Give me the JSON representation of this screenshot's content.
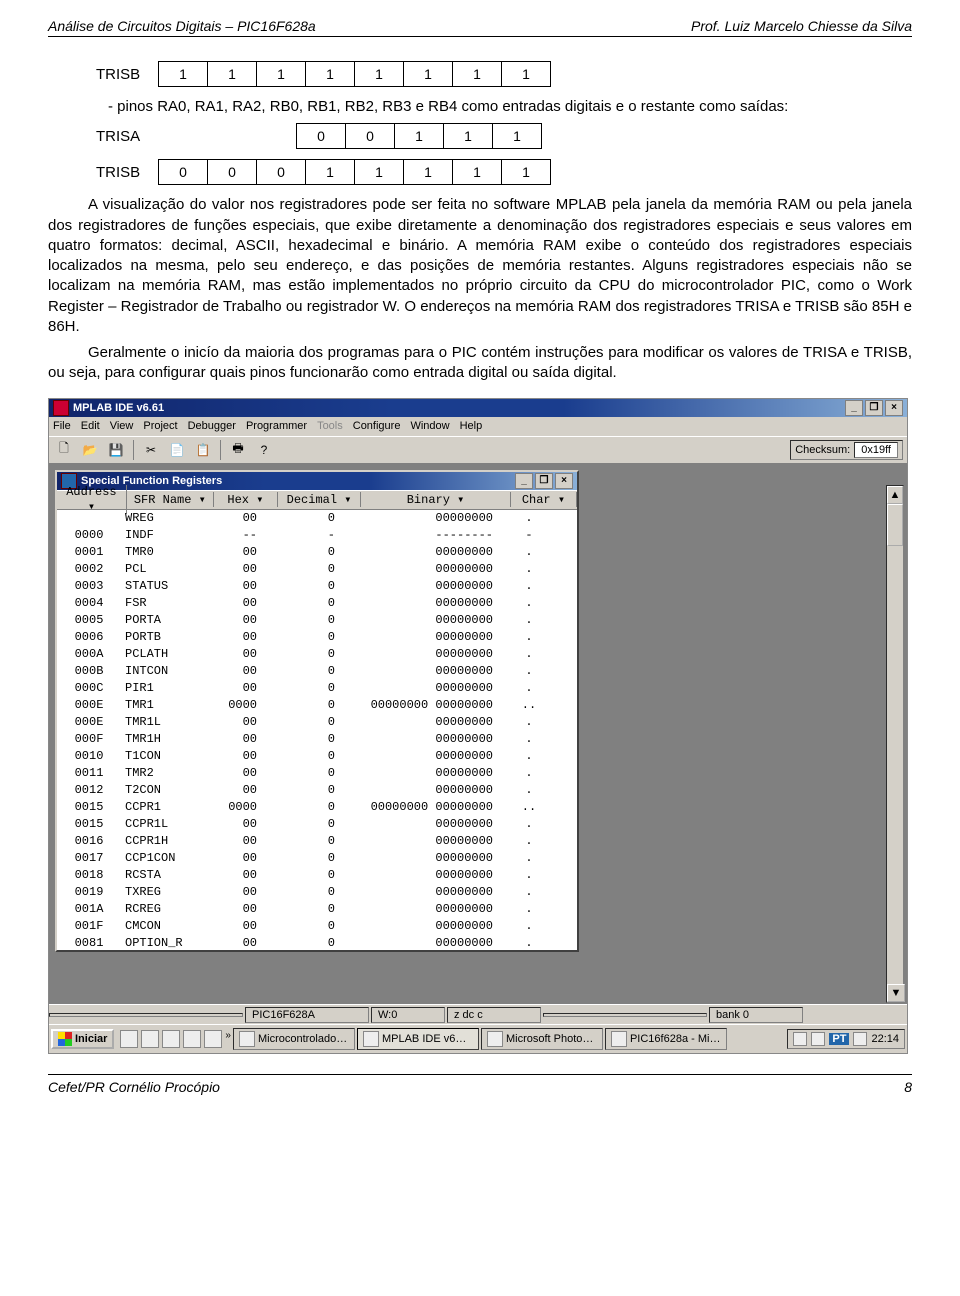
{
  "header": {
    "left": "Análise de Circuitos Digitais – PIC16F628a",
    "right": "Prof. Luiz Marcelo Chiesse da Silva"
  },
  "regs": {
    "trisb_top": {
      "label": "TRISB",
      "cells": [
        "1",
        "1",
        "1",
        "1",
        "1",
        "1",
        "1",
        "1"
      ]
    },
    "desc_pins": "- pinos RA0, RA1, RA2, RB0, RB1, RB2, RB3 e RB4 como entradas digitais e o restante como saídas:",
    "trisa": {
      "label": "TRISA",
      "cells": [
        "",
        "",
        "",
        "0",
        "0",
        "1",
        "1",
        "1"
      ]
    },
    "trisb_bot": {
      "label": "TRISB",
      "cells": [
        "0",
        "0",
        "0",
        "1",
        "1",
        "1",
        "1",
        "1"
      ]
    }
  },
  "para1": "A visualização do valor nos registradores pode ser feita no software MPLAB pela janela da memória RAM ou pela janela dos registradores de funções especiais, que exibe diretamente a denominação dos registradores especiais e seus valores em quatro formatos: decimal, ASCII, hexadecimal e binário. A memória RAM exibe o conteúdo dos registradores especiais localizados na mesma, pelo seu endereço, e das posições de memória restantes. Alguns registradores especiais não se localizam na memória RAM, mas estão implementados no próprio circuito da CPU do microcontrolador PIC, como o Work Register – Registrador de Trabalho ou registrador W. O endereços na memória RAM dos registradores TRISA e TRISB são 85H e 86H.",
  "para2": "Geralmente o inicío da maioria dos programas para o PIC contém instruções para modificar os valores de TRISA e TRISB, ou seja, para configurar quais pinos funcionarão como entrada digital ou saída digital.",
  "app": {
    "title": "MPLAB IDE v6.61",
    "menu": [
      "File",
      "Edit",
      "View",
      "Project",
      "Debugger",
      "Programmer",
      "Tools",
      "Configure",
      "Window",
      "Help"
    ],
    "menu_disabled_index": 6,
    "checksum_label": "Checksum:",
    "checksum_value": "0x19ff",
    "subwin_title": "Special Function Registers",
    "columns": [
      "Address",
      "SFR Name",
      "Hex",
      "Decimal",
      "Binary",
      "Char"
    ],
    "rows": [
      [
        "",
        "WREG",
        "00",
        "0",
        "00000000",
        "."
      ],
      [
        "0000",
        "INDF",
        "--",
        "-",
        "--------",
        "-"
      ],
      [
        "0001",
        "TMR0",
        "00",
        "0",
        "00000000",
        "."
      ],
      [
        "0002",
        "PCL",
        "00",
        "0",
        "00000000",
        "."
      ],
      [
        "0003",
        "STATUS",
        "00",
        "0",
        "00000000",
        "."
      ],
      [
        "0004",
        "FSR",
        "00",
        "0",
        "00000000",
        "."
      ],
      [
        "0005",
        "PORTA",
        "00",
        "0",
        "00000000",
        "."
      ],
      [
        "0006",
        "PORTB",
        "00",
        "0",
        "00000000",
        "."
      ],
      [
        "000A",
        "PCLATH",
        "00",
        "0",
        "00000000",
        "."
      ],
      [
        "000B",
        "INTCON",
        "00",
        "0",
        "00000000",
        "."
      ],
      [
        "000C",
        "PIR1",
        "00",
        "0",
        "00000000",
        "."
      ],
      [
        "000E",
        "TMR1",
        "0000",
        "0",
        "00000000 00000000",
        ".."
      ],
      [
        "000E",
        "TMR1L",
        "00",
        "0",
        "00000000",
        "."
      ],
      [
        "000F",
        "TMR1H",
        "00",
        "0",
        "00000000",
        "."
      ],
      [
        "0010",
        "T1CON",
        "00",
        "0",
        "00000000",
        "."
      ],
      [
        "0011",
        "TMR2",
        "00",
        "0",
        "00000000",
        "."
      ],
      [
        "0012",
        "T2CON",
        "00",
        "0",
        "00000000",
        "."
      ],
      [
        "0015",
        "CCPR1",
        "0000",
        "0",
        "00000000 00000000",
        ".."
      ],
      [
        "0015",
        "CCPR1L",
        "00",
        "0",
        "00000000",
        "."
      ],
      [
        "0016",
        "CCPR1H",
        "00",
        "0",
        "00000000",
        "."
      ],
      [
        "0017",
        "CCP1CON",
        "00",
        "0",
        "00000000",
        "."
      ],
      [
        "0018",
        "RCSTA",
        "00",
        "0",
        "00000000",
        "."
      ],
      [
        "0019",
        "TXREG",
        "00",
        "0",
        "00000000",
        "."
      ],
      [
        "001A",
        "RCREG",
        "00",
        "0",
        "00000000",
        "."
      ],
      [
        "001F",
        "CMCON",
        "00",
        "0",
        "00000000",
        "."
      ],
      [
        "0081",
        "OPTION_R",
        "00",
        "0",
        "00000000",
        "."
      ]
    ],
    "status": [
      "",
      "PIC16F628A",
      "W:0",
      "z dc c",
      "",
      "bank 0"
    ],
    "start_label": "Iniciar",
    "tasks": [
      "Microcontrolado…",
      "MPLAB IDE v6…",
      "Microsoft Photo…",
      "PIC16f628a - Mi…"
    ],
    "active_task_index": 1,
    "clock": "22:14",
    "tray_lang": "PT"
  },
  "footer": {
    "left": "Cefet/PR Cornélio Procópio",
    "page": "8"
  }
}
